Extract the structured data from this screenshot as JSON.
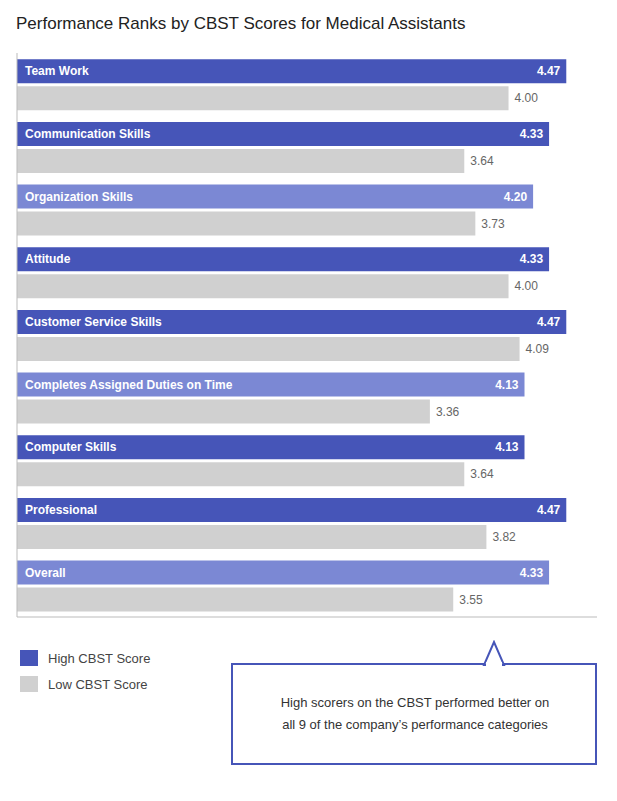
{
  "chart_data": {
    "type": "bar",
    "orientation": "horizontal",
    "title": "Performance Ranks by CBST Scores for Medical Assistants",
    "categories": [
      "Team Work",
      "Communication Skills",
      "Organization Skills",
      "Attitude",
      "Customer Service Skills",
      "Completes Assigned Duties on Time",
      "Computer Skills",
      "Professional",
      "Overall"
    ],
    "series": [
      {
        "name": "High CBST Score",
        "color": "#4655B8",
        "colors": [
          "#4655B8",
          "#4655B8",
          "#7B88D4",
          "#4655B8",
          "#4655B8",
          "#7B88D4",
          "#4655B8",
          "#4655B8",
          "#7B88D4"
        ],
        "values": [
          4.47,
          4.33,
          4.2,
          4.33,
          4.47,
          4.13,
          4.13,
          4.47,
          4.33
        ],
        "value_labels": [
          "4.47",
          "4.33",
          "4.20",
          "4.33",
          "4.47",
          "4.13",
          "4.13",
          "4.47",
          "4.33"
        ]
      },
      {
        "name": "Low CBST Score",
        "color": "#D0D0D0",
        "values": [
          4.0,
          3.64,
          3.73,
          4.0,
          4.09,
          3.36,
          3.64,
          3.82,
          3.55
        ],
        "value_labels": [
          "4.00",
          "3.64",
          "3.73",
          "4.00",
          "4.09",
          "3.36",
          "3.64",
          "3.82",
          "3.55"
        ]
      }
    ],
    "xlim": [
      0,
      4.72
    ],
    "data_labels": true,
    "tick_labels": false,
    "grid": false,
    "legend": "lower left",
    "annotation": "High scorers on the CBST performed better on\nall 9 of the company’s performance categories"
  }
}
